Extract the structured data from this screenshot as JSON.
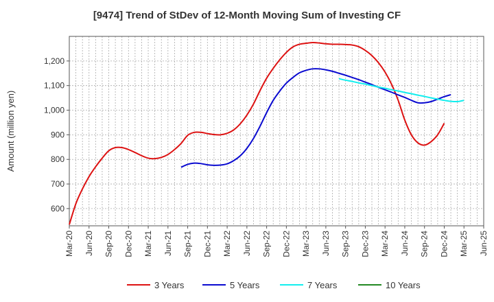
{
  "chart_data": {
    "type": "line",
    "title": "[9474]  Trend of StDev of 12-Month Moving Sum of Investing CF",
    "xlabel": "",
    "ylabel": "Amount (million yen)",
    "ylim": [
      530,
      1300
    ],
    "y_ticks": [
      600,
      700,
      800,
      900,
      "1,000",
      "1,100",
      "1,200"
    ],
    "y_tick_values": [
      600,
      700,
      800,
      900,
      1000,
      1100,
      1200
    ],
    "x_ticks": [
      "Mar-20",
      "Jun-20",
      "Sep-20",
      "Dec-20",
      "Mar-21",
      "Jun-21",
      "Sep-21",
      "Dec-21",
      "Mar-22",
      "Jun-22",
      "Sep-22",
      "Dec-22",
      "Mar-23",
      "Jun-23",
      "Sep-23",
      "Dec-23",
      "Mar-24",
      "Jun-24",
      "Sep-24",
      "Dec-24",
      "Mar-25",
      "Jun-25"
    ],
    "x_start": "2020-03",
    "x_end": "2025-06",
    "grid": true,
    "legend_position": "bottom",
    "series": [
      {
        "name": "3 Years",
        "color": "#dd1111",
        "start": "2020-03",
        "values": [
          535,
          620,
          680,
          730,
          770,
          805,
          835,
          848,
          848,
          840,
          828,
          815,
          805,
          803,
          808,
          820,
          840,
          865,
          898,
          910,
          910,
          905,
          901,
          900,
          906,
          920,
          945,
          980,
          1025,
          1080,
          1130,
          1170,
          1205,
          1235,
          1257,
          1268,
          1272,
          1275,
          1273,
          1270,
          1268,
          1268,
          1267,
          1265,
          1258,
          1243,
          1222,
          1193,
          1155,
          1105,
          1040,
          960,
          900,
          867,
          858,
          872,
          900,
          947
        ]
      },
      {
        "name": "5 Years",
        "color": "#0a0ad0",
        "start": "2021-08",
        "values": [
          768,
          780,
          785,
          783,
          778,
          776,
          777,
          782,
          795,
          815,
          845,
          885,
          935,
          990,
          1040,
          1078,
          1110,
          1133,
          1152,
          1162,
          1168,
          1168,
          1164,
          1158,
          1150,
          1142,
          1133,
          1124,
          1114,
          1104,
          1093,
          1083,
          1073,
          1062,
          1052,
          1040,
          1030,
          1030,
          1035,
          1045,
          1055,
          1063
        ]
      },
      {
        "name": "7 Years",
        "color": "#11eeee",
        "start": "2023-08",
        "values": [
          1128,
          1122,
          1117,
          1111,
          1106,
          1100,
          1094,
          1089,
          1083,
          1078,
          1072,
          1067,
          1061,
          1056,
          1050,
          1045,
          1040,
          1036,
          1035,
          1040
        ]
      },
      {
        "name": "10 Years",
        "color": "#228822",
        "start": "2025-03",
        "values": []
      }
    ]
  }
}
